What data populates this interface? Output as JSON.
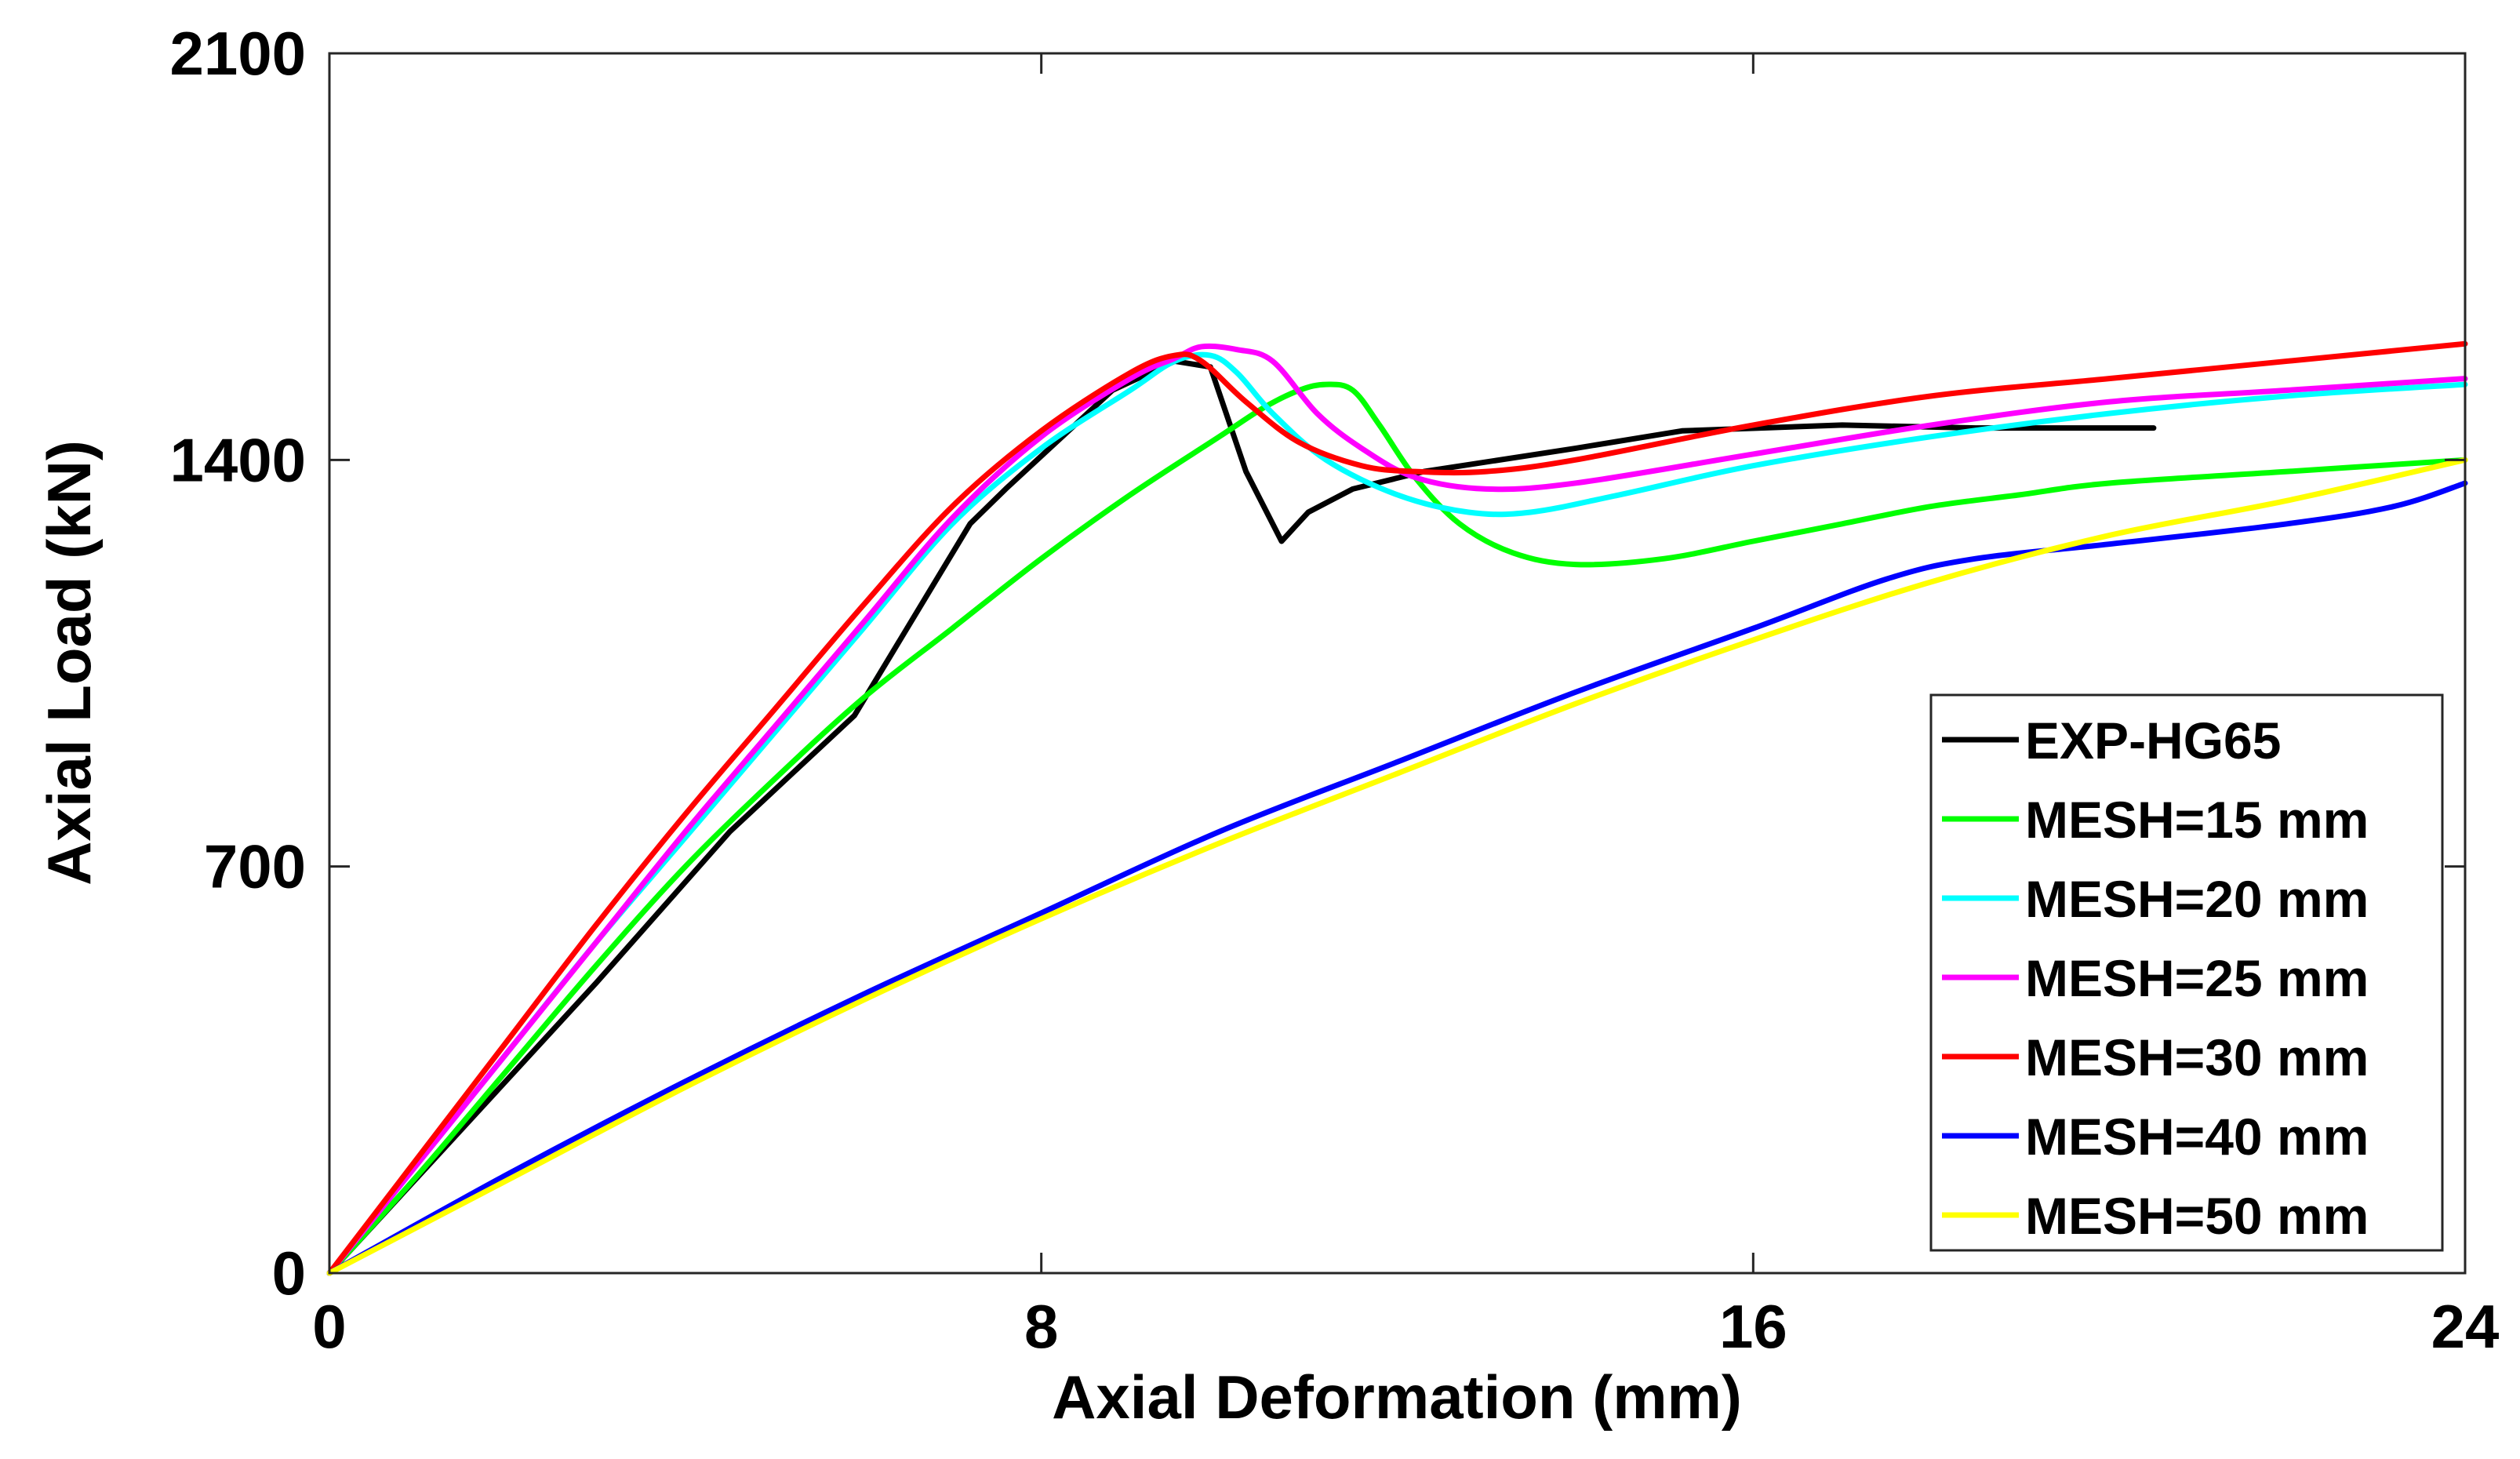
{
  "chart_data": {
    "type": "line",
    "title": "",
    "xlabel": "Axial Deformation (mm)",
    "ylabel": "Axial Load (kN)",
    "xlim": [
      0,
      24
    ],
    "ylim": [
      0,
      2100
    ],
    "xticks": [
      0,
      8,
      16,
      24
    ],
    "yticks": [
      0,
      700,
      1400,
      2100
    ],
    "xtick_labels": [
      "0",
      "8",
      "16",
      "24"
    ],
    "ytick_labels": [
      "0",
      "700",
      "1400",
      "2100"
    ],
    "grid": false,
    "legend_position": "bottom-right",
    "series": [
      {
        "name": "EXP-HG65",
        "color": "#000000",
        "points": [
          [
            0,
            0
          ],
          [
            1.5,
            250
          ],
          [
            3,
            500
          ],
          [
            4.5,
            760
          ],
          [
            5.9,
            960
          ],
          [
            7.2,
            1290
          ],
          [
            7.6,
            1350
          ],
          [
            8.8,
            1520
          ],
          [
            9.5,
            1570
          ],
          [
            9.9,
            1560
          ],
          [
            10.3,
            1380
          ],
          [
            10.7,
            1260
          ],
          [
            11,
            1310
          ],
          [
            11.5,
            1350
          ],
          [
            12.3,
            1380
          ],
          [
            14,
            1420
          ],
          [
            15.2,
            1450
          ],
          [
            17,
            1460
          ],
          [
            18.5,
            1455
          ],
          [
            20.5,
            1455
          ]
        ]
      },
      {
        "name": "MESH=15 mm",
        "color": "#00ff00",
        "points": [
          [
            0,
            0
          ],
          [
            1,
            170
          ],
          [
            2,
            350
          ],
          [
            3,
            530
          ],
          [
            4,
            700
          ],
          [
            5,
            850
          ],
          [
            6,
            990
          ],
          [
            7,
            1110
          ],
          [
            8,
            1230
          ],
          [
            9,
            1340
          ],
          [
            10,
            1440
          ],
          [
            10.5,
            1490
          ],
          [
            10.9,
            1520
          ],
          [
            11.2,
            1530
          ],
          [
            11.5,
            1520
          ],
          [
            11.8,
            1460
          ],
          [
            12.2,
            1370
          ],
          [
            12.7,
            1290
          ],
          [
            13.3,
            1240
          ],
          [
            14,
            1220
          ],
          [
            15,
            1230
          ],
          [
            16,
            1260
          ],
          [
            17,
            1290
          ],
          [
            18,
            1320
          ],
          [
            19,
            1340
          ],
          [
            20,
            1360
          ],
          [
            22,
            1380
          ],
          [
            24,
            1400
          ]
        ]
      },
      {
        "name": "MESH=20 mm",
        "color": "#00ffff",
        "points": [
          [
            0,
            0
          ],
          [
            1,
            190
          ],
          [
            2,
            380
          ],
          [
            3,
            570
          ],
          [
            4,
            750
          ],
          [
            5,
            930
          ],
          [
            6,
            1110
          ],
          [
            7,
            1290
          ],
          [
            8,
            1420
          ],
          [
            9,
            1520
          ],
          [
            9.5,
            1570
          ],
          [
            9.9,
            1580
          ],
          [
            10.2,
            1550
          ],
          [
            10.6,
            1480
          ],
          [
            11.2,
            1400
          ],
          [
            12,
            1340
          ],
          [
            12.8,
            1310
          ],
          [
            13.5,
            1310
          ],
          [
            14.5,
            1340
          ],
          [
            16,
            1390
          ],
          [
            18,
            1440
          ],
          [
            20,
            1480
          ],
          [
            22,
            1510
          ],
          [
            24,
            1530
          ]
        ]
      },
      {
        "name": "MESH=25 mm",
        "color": "#ff00ff",
        "points": [
          [
            0,
            0
          ],
          [
            1,
            190
          ],
          [
            2,
            380
          ],
          [
            3,
            570
          ],
          [
            4,
            760
          ],
          [
            5,
            940
          ],
          [
            6,
            1120
          ],
          [
            7,
            1300
          ],
          [
            8,
            1440
          ],
          [
            9,
            1540
          ],
          [
            9.5,
            1575
          ],
          [
            9.8,
            1595
          ],
          [
            10.2,
            1590
          ],
          [
            10.6,
            1570
          ],
          [
            11.1,
            1480
          ],
          [
            11.6,
            1420
          ],
          [
            12.2,
            1370
          ],
          [
            13,
            1350
          ],
          [
            14,
            1360
          ],
          [
            16,
            1410
          ],
          [
            18,
            1460
          ],
          [
            20,
            1500
          ],
          [
            22,
            1520
          ],
          [
            24,
            1540
          ]
        ]
      },
      {
        "name": "MESH=30 mm",
        "color": "#ff0000",
        "points": [
          [
            0,
            0
          ],
          [
            1,
            200
          ],
          [
            2,
            400
          ],
          [
            3,
            600
          ],
          [
            4,
            790
          ],
          [
            5,
            970
          ],
          [
            6,
            1150
          ],
          [
            7,
            1320
          ],
          [
            8,
            1450
          ],
          [
            9,
            1550
          ],
          [
            9.5,
            1580
          ],
          [
            9.8,
            1570
          ],
          [
            10.3,
            1500
          ],
          [
            10.9,
            1430
          ],
          [
            11.6,
            1390
          ],
          [
            12.2,
            1380
          ],
          [
            13,
            1380
          ],
          [
            14,
            1400
          ],
          [
            16,
            1460
          ],
          [
            18,
            1510
          ],
          [
            20,
            1540
          ],
          [
            22,
            1570
          ],
          [
            24,
            1600
          ]
        ]
      },
      {
        "name": "MESH=40 mm",
        "color": "#0000ff",
        "points": [
          [
            0,
            0
          ],
          [
            2,
            170
          ],
          [
            4,
            330
          ],
          [
            6,
            480
          ],
          [
            8,
            620
          ],
          [
            10,
            760
          ],
          [
            12,
            880
          ],
          [
            14,
            1000
          ],
          [
            16,
            1110
          ],
          [
            17.5,
            1195
          ],
          [
            18.5,
            1230
          ],
          [
            20,
            1255
          ],
          [
            22,
            1290
          ],
          [
            23.2,
            1320
          ],
          [
            24,
            1360
          ]
        ]
      },
      {
        "name": "MESH=50 mm",
        "color": "#ffff00",
        "points": [
          [
            0,
            0
          ],
          [
            2,
            160
          ],
          [
            4,
            320
          ],
          [
            6,
            470
          ],
          [
            8,
            610
          ],
          [
            10,
            740
          ],
          [
            12,
            860
          ],
          [
            14,
            980
          ],
          [
            16,
            1090
          ],
          [
            18,
            1190
          ],
          [
            20,
            1270
          ],
          [
            22,
            1330
          ],
          [
            24,
            1400
          ]
        ]
      }
    ]
  }
}
